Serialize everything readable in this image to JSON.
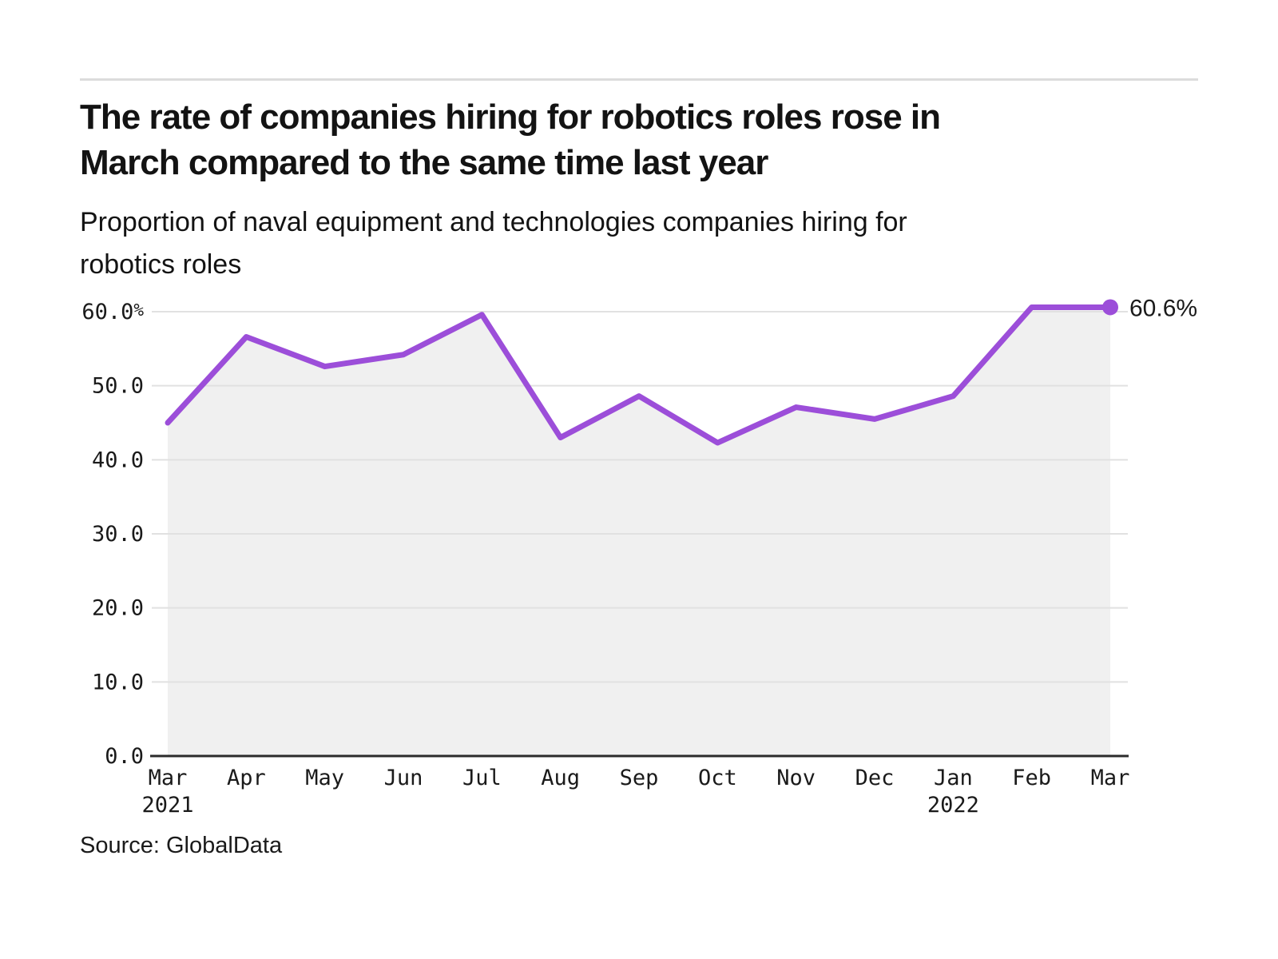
{
  "chart_data": {
    "type": "area",
    "title": "The rate of companies hiring for robotics roles rose in March compared to the same time last year",
    "title_lines": [
      "The rate of companies hiring for robotics roles rose in",
      "March compared to the same time last year"
    ],
    "subtitle": "Proportion of naval equipment and technologies companies hiring for robotics roles",
    "subtitle_lines": [
      "Proportion of naval equipment and technologies companies hiring for",
      "robotics roles"
    ],
    "categories": [
      "Mar",
      "Apr",
      "May",
      "Jun",
      "Jul",
      "Aug",
      "Sep",
      "Oct",
      "Nov",
      "Dec",
      "Jan",
      "Feb",
      "Mar"
    ],
    "year_markers": [
      {
        "index": 0,
        "label": "2021"
      },
      {
        "index": 10,
        "label": "2022"
      }
    ],
    "values": [
      45.0,
      56.6,
      52.6,
      54.2,
      59.6,
      43.0,
      48.6,
      42.3,
      47.1,
      45.5,
      48.6,
      60.6,
      60.6
    ],
    "unit": "%",
    "ylim": [
      0,
      62
    ],
    "grid": true,
    "legend_position": "none",
    "y_ticks": [
      {
        "value": 60,
        "label": "60.0%"
      },
      {
        "value": 50,
        "label": "50.0"
      },
      {
        "value": 40,
        "label": "40.0"
      },
      {
        "value": 30,
        "label": "30.0"
      },
      {
        "value": 20,
        "label": "20.0"
      },
      {
        "value": 10,
        "label": "10.0"
      },
      {
        "value": 0,
        "label": "0.0"
      }
    ],
    "end_annotation": "60.6%",
    "colors": {
      "line": "#9c4ed9",
      "area": "#f0f0f0",
      "grid": "#e1e1e1",
      "axis": "#2b2b2b",
      "text": "#1a1a1a",
      "rule": "#dcdcdc"
    }
  },
  "source": {
    "label": "Source: GlobalData"
  }
}
